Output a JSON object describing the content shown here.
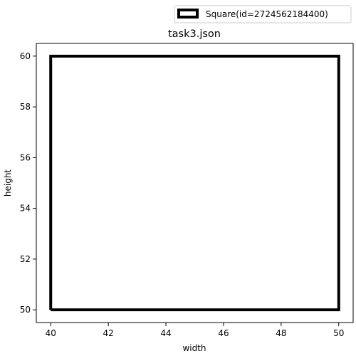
{
  "chart_data": {
    "type": "line",
    "title": "task3.json",
    "xlabel": "width",
    "ylabel": "height",
    "xlim": [
      39.5,
      50.5
    ],
    "ylim": [
      49.5,
      60.5
    ],
    "xticks": [
      40,
      42,
      44,
      46,
      48,
      50
    ],
    "yticks": [
      50,
      52,
      54,
      56,
      58,
      60
    ],
    "grid": false,
    "legend_position": "top-right, above the plot",
    "series": [
      {
        "name": "Square(id=2724562184400)",
        "color": "#000000",
        "points": [
          [
            40,
            50
          ],
          [
            50,
            50
          ],
          [
            50,
            60
          ],
          [
            40,
            60
          ],
          [
            40,
            50
          ]
        ]
      }
    ]
  }
}
